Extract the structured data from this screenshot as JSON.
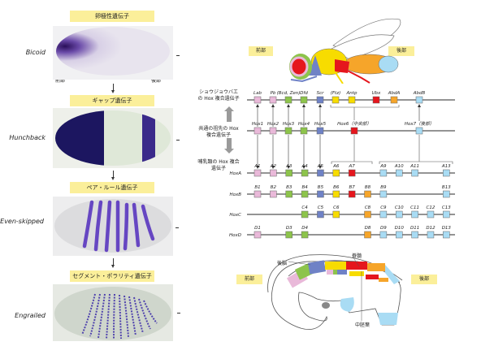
{
  "left_panel": {
    "stages": [
      {
        "category": "卵極性遺伝子",
        "gene": "Bicoid"
      },
      {
        "category": "ギャップ遺伝子",
        "gene": "Hunchback"
      },
      {
        "category": "ペア・ルール遺伝子",
        "gene": "Even-skipped"
      },
      {
        "category": "セグメント・ポラリティ遺伝子",
        "gene": "Engrailed"
      }
    ],
    "anterior": "前部",
    "posterior": "後部"
  },
  "fly": {
    "anterior": "前部",
    "posterior": "後部"
  },
  "mouse": {
    "anterior": "前部",
    "posterior": "後部",
    "hindbrain": "後脳",
    "spinal_cord": "脊髄",
    "mesoderm": "中胚葉"
  },
  "hox": {
    "colors": {
      "pink": "#e9b9d9",
      "green": "#8dc44b",
      "blue": "#6f82c6",
      "yellow": "#f7dc00",
      "red": "#e5161d",
      "orange": "#f6a52a",
      "lightblue": "#a9dcf4"
    },
    "fly_label": "ショウジョウバエの Hox 複合遺伝子",
    "ancestor_label": "共通の祖先の Hox 複合遺伝子",
    "mammal_label": "哺乳類の Hox 複合遺伝子",
    "fly_genes": [
      {
        "label": "Lab",
        "color": "pink"
      },
      {
        "label": "Pb",
        "color": "pink"
      },
      {
        "label": "(Bcd, Zen)",
        "color": "green"
      },
      {
        "label": "Dfd",
        "color": "green"
      },
      {
        "label": "Scr",
        "color": "blue"
      },
      {
        "label": "(Ftz)",
        "color": "yellow"
      },
      {
        "label": "Antp",
        "color": "yellow"
      },
      {
        "label": "Ubx",
        "color": "red"
      },
      {
        "label": "AbdA",
        "color": "orange"
      },
      {
        "label": "AbdB",
        "color": "lightblue"
      }
    ],
    "ancestor_genes": [
      {
        "label": "Hox1",
        "color": "pink"
      },
      {
        "label": "Hox2",
        "color": "pink"
      },
      {
        "label": "Hox3",
        "color": "green"
      },
      {
        "label": "Hox4",
        "color": "green"
      },
      {
        "label": "Hox5",
        "color": "blue"
      },
      {
        "label": "Hox6（中央部）",
        "color": "red"
      },
      {
        "label": "Hox7（後部）",
        "color": "lightblue"
      }
    ],
    "clusters": [
      {
        "name": "HoxA",
        "genes": [
          {
            "label": "A1",
            "group": 1,
            "color": "pink"
          },
          {
            "label": "A2",
            "group": 2,
            "color": "pink"
          },
          {
            "label": "A3",
            "group": 3,
            "color": "green"
          },
          {
            "label": "A4",
            "group": 4,
            "color": "green"
          },
          {
            "label": "A5",
            "group": 5,
            "color": "blue"
          },
          {
            "label": "A6",
            "group": 6,
            "color": "yellow"
          },
          {
            "label": "A7",
            "group": 7,
            "color": "red"
          },
          {
            "label": "A9",
            "group": 9,
            "color": "lightblue"
          },
          {
            "label": "A10",
            "group": 10,
            "color": "lightblue"
          },
          {
            "label": "A11",
            "group": 11,
            "color": "lightblue"
          },
          {
            "label": "A13",
            "group": 13,
            "color": "lightblue"
          }
        ]
      },
      {
        "name": "HoxB",
        "genes": [
          {
            "label": "B1",
            "group": 1,
            "color": "pink"
          },
          {
            "label": "B2",
            "group": 2,
            "color": "pink"
          },
          {
            "label": "B3",
            "group": 3,
            "color": "green"
          },
          {
            "label": "B4",
            "group": 4,
            "color": "green"
          },
          {
            "label": "B5",
            "group": 5,
            "color": "blue"
          },
          {
            "label": "B6",
            "group": 6,
            "color": "yellow"
          },
          {
            "label": "B7",
            "group": 7,
            "color": "red"
          },
          {
            "label": "B8",
            "group": 8,
            "color": "orange"
          },
          {
            "label": "B9",
            "group": 9,
            "color": "lightblue"
          },
          {
            "label": "B13",
            "group": 13,
            "color": "lightblue"
          }
        ]
      },
      {
        "name": "HoxC",
        "genes": [
          {
            "label": "C4",
            "group": 4,
            "color": "green"
          },
          {
            "label": "C5",
            "group": 5,
            "color": "blue"
          },
          {
            "label": "C6",
            "group": 6,
            "color": "yellow"
          },
          {
            "label": "C8",
            "group": 8,
            "color": "orange"
          },
          {
            "label": "C9",
            "group": 9,
            "color": "lightblue"
          },
          {
            "label": "C10",
            "group": 10,
            "color": "lightblue"
          },
          {
            "label": "C11",
            "group": 11,
            "color": "lightblue"
          },
          {
            "label": "C12",
            "group": 12,
            "color": "lightblue"
          },
          {
            "label": "C13",
            "group": 13,
            "color": "lightblue"
          }
        ]
      },
      {
        "name": "HoxD",
        "genes": [
          {
            "label": "D1",
            "group": 1,
            "color": "pink"
          },
          {
            "label": "D3",
            "group": 3,
            "color": "green"
          },
          {
            "label": "D4",
            "group": 4,
            "color": "green"
          },
          {
            "label": "D8",
            "group": 8,
            "color": "orange"
          },
          {
            "label": "D9",
            "group": 9,
            "color": "lightblue"
          },
          {
            "label": "D10",
            "group": 10,
            "color": "lightblue"
          },
          {
            "label": "D11",
            "group": 11,
            "color": "lightblue"
          },
          {
            "label": "D12",
            "group": 12,
            "color": "lightblue"
          },
          {
            "label": "D13",
            "group": 13,
            "color": "lightblue"
          }
        ]
      }
    ]
  }
}
